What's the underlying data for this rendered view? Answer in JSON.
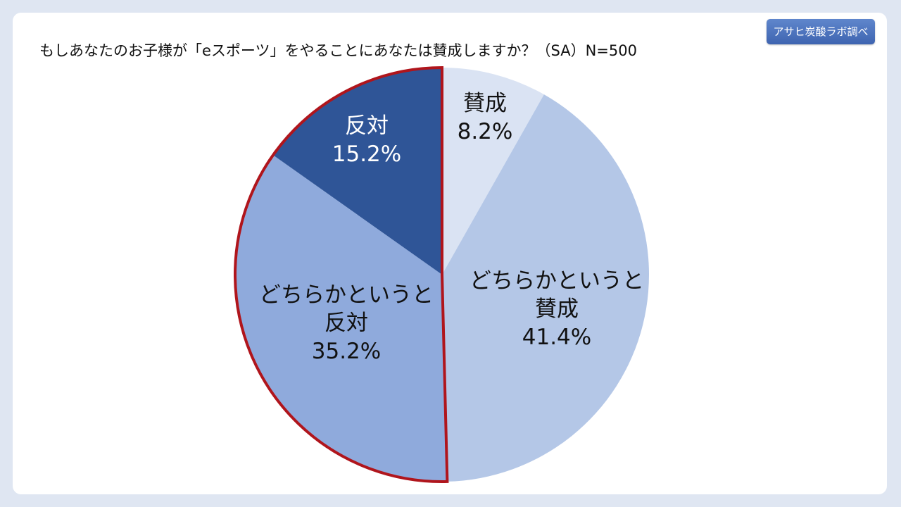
{
  "title": "もしあなたのお子様が「eスポーツ」をやることにあなたは賛成しますか？（SA）N=500",
  "badge": "アサヒ炭酸ラボ調べ",
  "colors": {
    "background": "#dfe6f2",
    "panel": "#ffffff",
    "highlight_outline": "#b0151c",
    "badge": "#4a70ba"
  },
  "chart_data": {
    "type": "pie",
    "start": "12 o'clock",
    "direction": "clockwise",
    "slices": [
      {
        "name": "賛成",
        "label_lines": [
          "賛成"
        ],
        "value": 8.2,
        "value_text": "8.2%",
        "color": "#dae3f3",
        "text_color": "#111111",
        "highlighted": false
      },
      {
        "name": "どちらかというと賛成",
        "label_lines": [
          "どちらかというと",
          "賛成"
        ],
        "value": 41.4,
        "value_text": "41.4%",
        "color": "#b4c7e7",
        "text_color": "#111111",
        "highlighted": false
      },
      {
        "name": "どちらかというと反対",
        "label_lines": [
          "どちらかというと",
          "反対"
        ],
        "value": 35.2,
        "value_text": "35.2%",
        "color": "#8faadc",
        "text_color": "#111111",
        "highlighted": true
      },
      {
        "name": "反対",
        "label_lines": [
          "反対"
        ],
        "value": 15.2,
        "value_text": "15.2%",
        "color": "#2f5597",
        "text_color": "#ffffff",
        "highlighted": true
      }
    ],
    "highlight": "反対 + どちらかというと反対 (red outline)"
  }
}
